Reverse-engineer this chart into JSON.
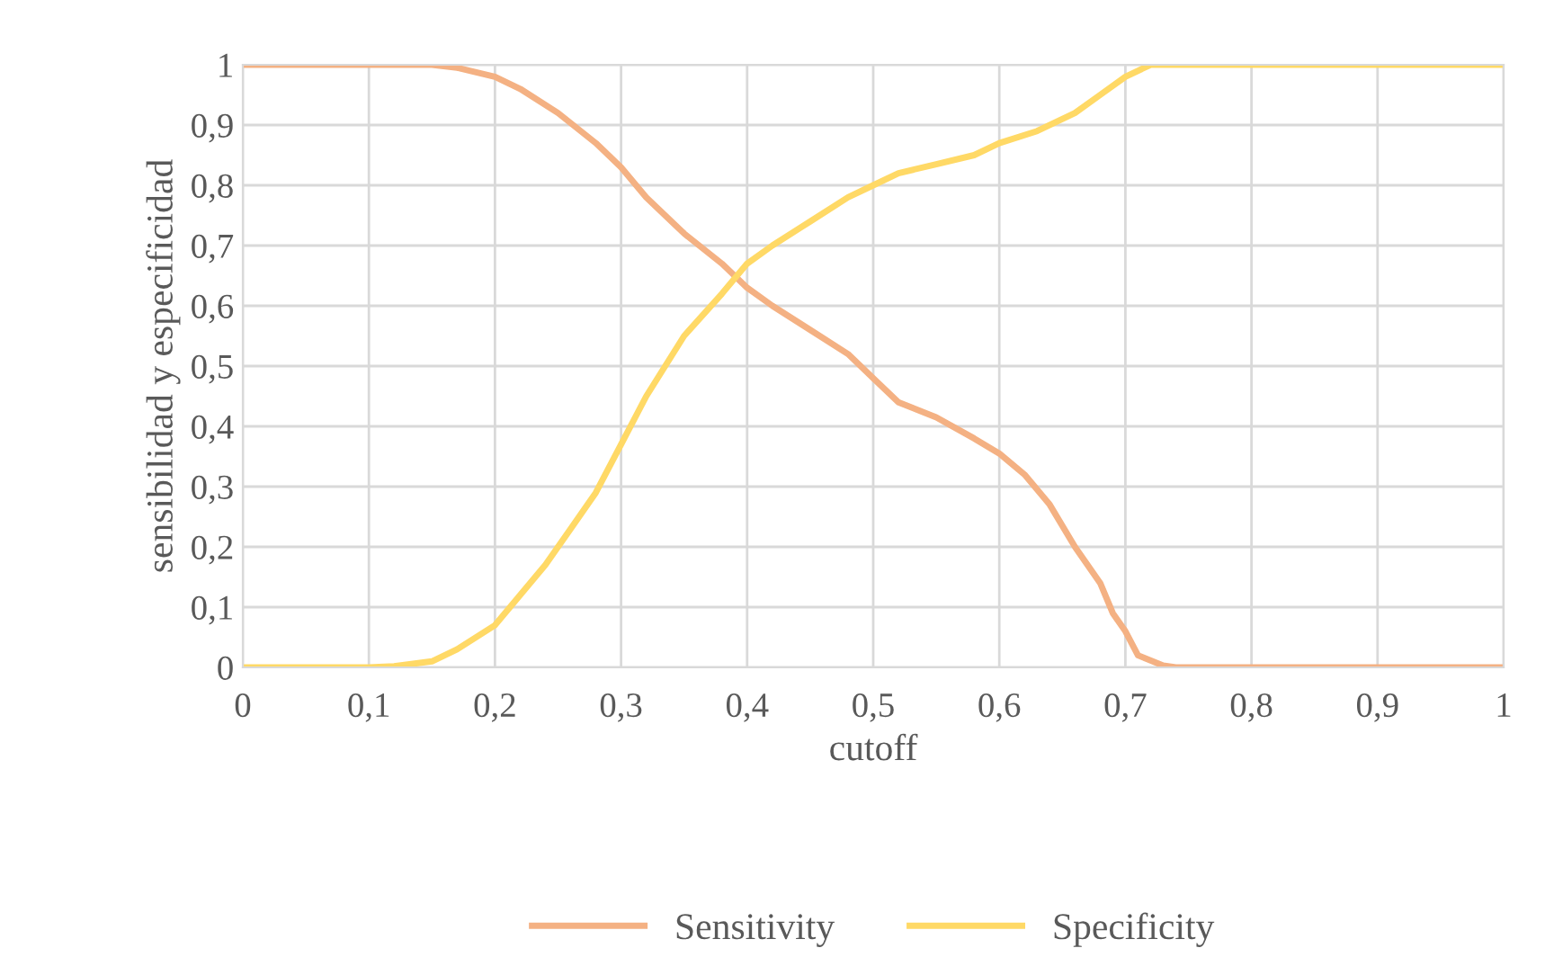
{
  "chart_data": {
    "type": "line",
    "xlabel": "cutoff",
    "ylabel": "sensibilidad y especificidad",
    "series": [
      {
        "name": "Sensitivity",
        "color": "#f4b183",
        "x": [
          0,
          0.1,
          0.15,
          0.17,
          0.2,
          0.22,
          0.25,
          0.28,
          0.3,
          0.32,
          0.35,
          0.38,
          0.4,
          0.42,
          0.45,
          0.48,
          0.5,
          0.52,
          0.55,
          0.58,
          0.6,
          0.62,
          0.64,
          0.66,
          0.68,
          0.69,
          0.7,
          0.71,
          0.73,
          0.74,
          1
        ],
        "values": [
          1,
          1,
          1,
          0.995,
          0.98,
          0.96,
          0.92,
          0.87,
          0.83,
          0.78,
          0.72,
          0.67,
          0.63,
          0.6,
          0.56,
          0.52,
          0.48,
          0.44,
          0.415,
          0.38,
          0.355,
          0.32,
          0.27,
          0.2,
          0.14,
          0.09,
          0.06,
          0.02,
          0.003,
          0,
          0
        ]
      },
      {
        "name": "Specificity",
        "color": "#ffd966",
        "x": [
          0,
          0.1,
          0.12,
          0.15,
          0.17,
          0.2,
          0.22,
          0.24,
          0.26,
          0.28,
          0.3,
          0.32,
          0.35,
          0.38,
          0.4,
          0.42,
          0.45,
          0.48,
          0.5,
          0.52,
          0.55,
          0.58,
          0.6,
          0.63,
          0.66,
          0.68,
          0.7,
          0.72,
          1
        ],
        "values": [
          0,
          0,
          0.002,
          0.01,
          0.03,
          0.07,
          0.12,
          0.17,
          0.23,
          0.29,
          0.37,
          0.45,
          0.55,
          0.62,
          0.67,
          0.7,
          0.74,
          0.78,
          0.8,
          0.82,
          0.835,
          0.85,
          0.87,
          0.89,
          0.92,
          0.95,
          0.98,
          1,
          1
        ]
      }
    ],
    "xlim": [
      0,
      1
    ],
    "ylim": [
      0,
      1
    ],
    "xticks": [
      0,
      {
        "value": 0.1,
        "label": "0,1"
      },
      {
        "value": 0.2,
        "label": "0,2"
      },
      {
        "value": 0.3,
        "label": "0,3"
      },
      {
        "value": 0.4,
        "label": "0,4"
      },
      {
        "value": 0.5,
        "label": "0,5"
      },
      {
        "value": 0.6,
        "label": "0,6"
      },
      {
        "value": 0.7,
        "label": "0,7"
      },
      {
        "value": 0.8,
        "label": "0,8"
      },
      {
        "value": 0.9,
        "label": "0,9"
      },
      1
    ],
    "yticks": [
      0,
      {
        "value": 0.1,
        "label": "0,1"
      },
      {
        "value": 0.2,
        "label": "0,2"
      },
      {
        "value": 0.3,
        "label": "0,3"
      },
      {
        "value": 0.4,
        "label": "0,4"
      },
      {
        "value": 0.5,
        "label": "0,5"
      },
      {
        "value": 0.6,
        "label": "0,6"
      },
      {
        "value": 0.7,
        "label": "0,7"
      },
      {
        "value": 0.8,
        "label": "0,8"
      },
      {
        "value": 0.9,
        "label": "0,9"
      },
      1
    ],
    "grid": true,
    "legend": "bottom",
    "marker": "none",
    "line_style": "solid"
  }
}
